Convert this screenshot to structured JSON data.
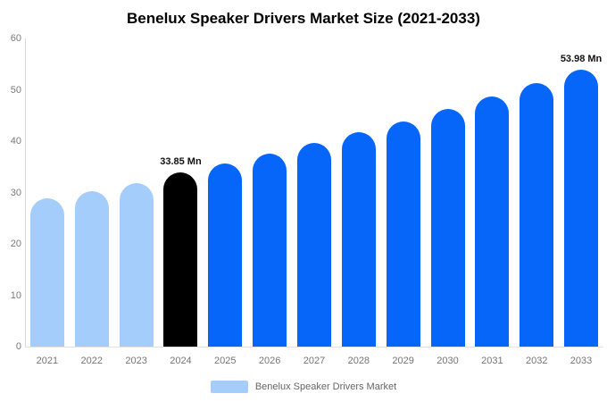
{
  "title": "Benelux Speaker Drivers Market Size (2021-2033)",
  "legend": {
    "label": "Benelux Speaker Drivers Market",
    "swatch_color": "#a4cdfb"
  },
  "colors": {
    "historical_bar": "#a4cdfb",
    "base_year_bar": "#000000",
    "forecast_bar": "#0666fa",
    "axis_line": "#d8d8d8",
    "tick_text": "#7a7a7a",
    "title_text": "#000000"
  },
  "chart_data": {
    "type": "bar",
    "title": "Benelux Speaker Drivers Market Size (2021-2033)",
    "unit": "Mn",
    "xlabel": "",
    "ylabel": "",
    "ylim": [
      0,
      60
    ],
    "yticks": [
      0,
      10,
      20,
      30,
      40,
      50,
      60
    ],
    "grid": false,
    "legend_position": "bottom",
    "categories": [
      "2021",
      "2022",
      "2023",
      "2024",
      "2025",
      "2026",
      "2027",
      "2028",
      "2029",
      "2030",
      "2031",
      "2032",
      "2033"
    ],
    "values": [
      28.9,
      30.3,
      31.9,
      33.85,
      35.7,
      37.6,
      39.6,
      41.7,
      43.9,
      46.2,
      48.7,
      51.3,
      53.98
    ],
    "bar_roles": [
      "historical",
      "historical",
      "historical",
      "base_year",
      "forecast",
      "forecast",
      "forecast",
      "forecast",
      "forecast",
      "forecast",
      "forecast",
      "forecast",
      "forecast"
    ],
    "data_labels": {
      "2024": "33.85 Mn",
      "2033": "53.98 Mn"
    },
    "series": [
      {
        "name": "Benelux Speaker Drivers Market",
        "values": [
          28.9,
          30.3,
          31.9,
          33.85,
          35.7,
          37.6,
          39.6,
          41.7,
          43.9,
          46.2,
          48.7,
          51.3,
          53.98
        ]
      }
    ]
  }
}
